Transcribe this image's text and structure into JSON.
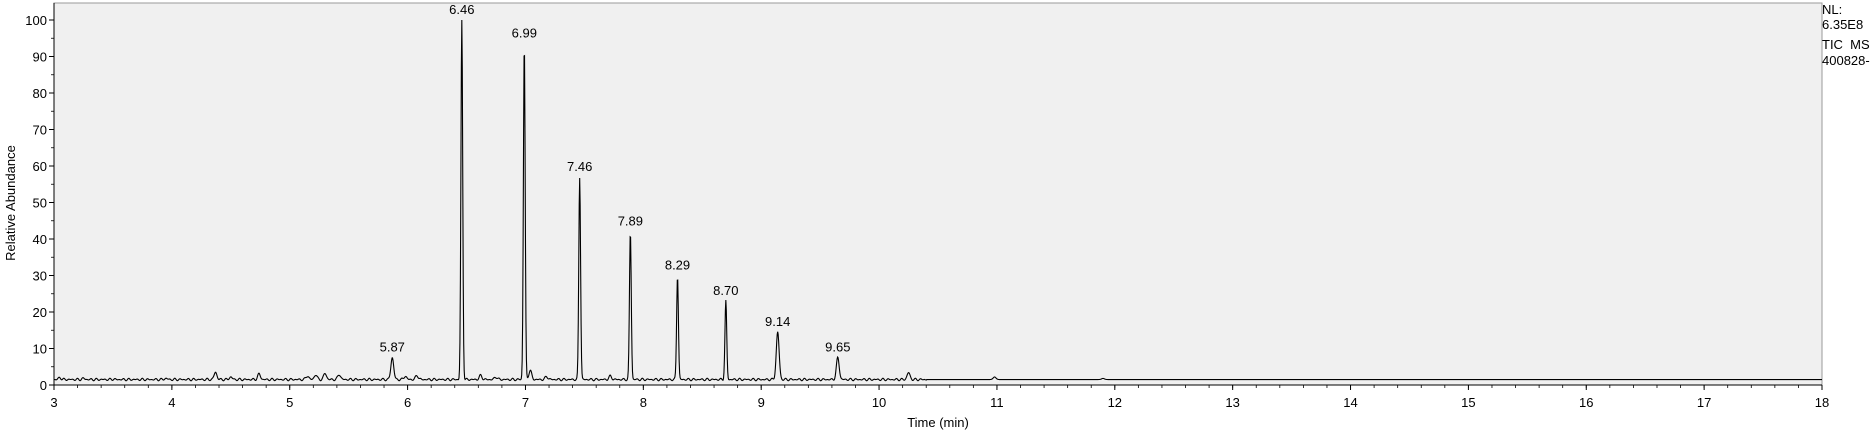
{
  "chart_data": {
    "type": "line",
    "title": "",
    "xlabel": "Time (min)",
    "ylabel": "Relative Abundance",
    "xlim": [
      3,
      18
    ],
    "ylim": [
      0,
      100
    ],
    "x_ticks": [
      3,
      4,
      5,
      6,
      7,
      8,
      9,
      10,
      11,
      12,
      13,
      14,
      15,
      16,
      17,
      18
    ],
    "y_ticks": [
      0,
      10,
      20,
      30,
      40,
      50,
      60,
      70,
      80,
      90,
      100
    ],
    "grid": false,
    "background_color": "#f0f0f0",
    "line_color": "#000000",
    "baseline": 1.5,
    "series": [
      {
        "peaks": [
          {
            "x": 3.05,
            "y": 2.0
          },
          {
            "x": 3.25,
            "y": 1.8
          },
          {
            "x": 3.5,
            "y": 1.6
          },
          {
            "x": 3.95,
            "y": 1.8
          },
          {
            "x": 4.37,
            "y": 3.5
          },
          {
            "x": 4.5,
            "y": 2.2
          },
          {
            "x": 4.74,
            "y": 3.0
          },
          {
            "x": 5.15,
            "y": 2.5
          },
          {
            "x": 5.22,
            "y": 2.8
          },
          {
            "x": 5.3,
            "y": 3.2
          },
          {
            "x": 5.42,
            "y": 2.9
          },
          {
            "x": 5.87,
            "y": 7.5
          },
          {
            "x": 5.98,
            "y": 2.4
          },
          {
            "x": 6.08,
            "y": 2.6
          },
          {
            "x": 6.46,
            "y": 100
          },
          {
            "x": 6.62,
            "y": 2.6
          },
          {
            "x": 6.75,
            "y": 2.2
          },
          {
            "x": 6.99,
            "y": 93.5
          },
          {
            "x": 7.04,
            "y": 4.0
          },
          {
            "x": 7.18,
            "y": 2.3
          },
          {
            "x": 7.46,
            "y": 57
          },
          {
            "x": 7.72,
            "y": 2.4
          },
          {
            "x": 7.89,
            "y": 42
          },
          {
            "x": 8.29,
            "y": 30
          },
          {
            "x": 8.7,
            "y": 23
          },
          {
            "x": 9.14,
            "y": 14.5
          },
          {
            "x": 9.65,
            "y": 7.5
          },
          {
            "x": 10.25,
            "y": 3.4
          },
          {
            "x": 10.98,
            "y": 2.2
          },
          {
            "x": 11.9,
            "y": 1.8
          }
        ],
        "labeled_peaks": [
          {
            "x": 5.87,
            "label": "5.87"
          },
          {
            "x": 6.46,
            "label": "6.46"
          },
          {
            "x": 6.99,
            "label": "6.99"
          },
          {
            "x": 7.46,
            "label": "7.46"
          },
          {
            "x": 7.89,
            "label": "7.89"
          },
          {
            "x": 8.29,
            "label": "8.29"
          },
          {
            "x": 8.7,
            "label": "8.70"
          },
          {
            "x": 9.14,
            "label": "9.14"
          },
          {
            "x": 9.65,
            "label": "9.65"
          }
        ]
      }
    ]
  },
  "info": {
    "nl_label": "NL:",
    "nl_value": "6.35E8",
    "trace_type": "TIC  MS",
    "file_name": "400828-"
  }
}
